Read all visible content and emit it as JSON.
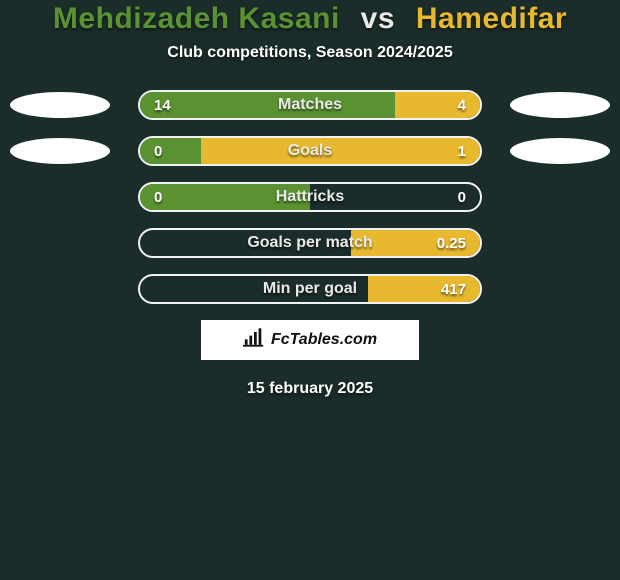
{
  "colors": {
    "bg": "#1b2d2a",
    "player1": "#5b9231",
    "player2": "#e8b92e",
    "bar_border": "#f2f2f2",
    "text_value": "#ffffff",
    "text_label": "#e9e9e9",
    "title_p1": "#5b9231",
    "title_vs": "#e9e9e9",
    "title_p2": "#e8b92e"
  },
  "title": {
    "player1": "Mehdizadeh Kasani",
    "vs": "vs",
    "player2": "Hamedifar"
  },
  "subtitle": "Club competitions, Season 2024/2025",
  "rows": [
    {
      "label": "Matches",
      "left": "14",
      "right": "4",
      "left_pct": 75,
      "right_pct": 25,
      "show_badges": true
    },
    {
      "label": "Goals",
      "left": "0",
      "right": "1",
      "left_pct": 18,
      "right_pct": 82,
      "show_badges": true
    },
    {
      "label": "Hattricks",
      "left": "0",
      "right": "0",
      "left_pct": 50,
      "right_pct": 0,
      "show_badges": false
    },
    {
      "label": "Goals per match",
      "left": "",
      "right": "0.25",
      "left_pct": 0,
      "right_pct": 38,
      "show_badges": false
    },
    {
      "label": "Min per goal",
      "left": "",
      "right": "417",
      "left_pct": 0,
      "right_pct": 33,
      "show_badges": false
    }
  ],
  "attribution": "FcTables.com",
  "footer_date": "15 february 2025"
}
